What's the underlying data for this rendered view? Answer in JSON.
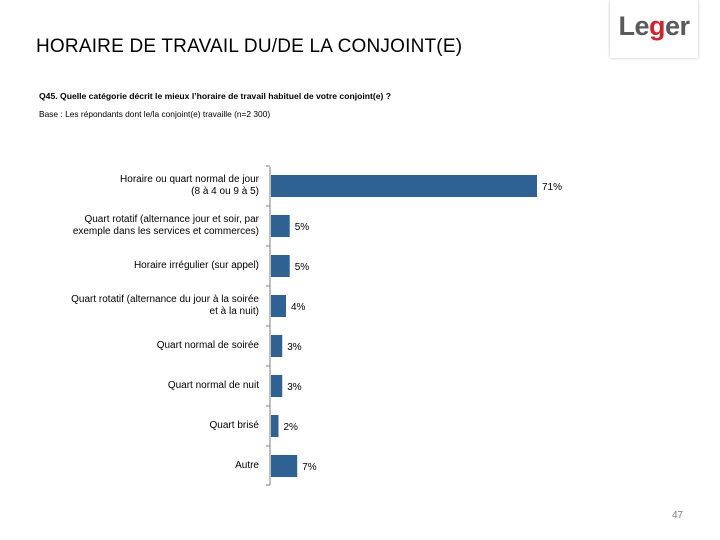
{
  "header": {
    "title": "HORAIRE DE TRAVAIL DU/DE LA CONJOINT(E)",
    "logo": {
      "pre": "Le",
      "accent": "g",
      "post": "er"
    }
  },
  "question": "Q45. Quelle catégorie décrit le mieux l’horaire de travail habituel de votre conjoint(e) ?",
  "base": "Base : Les répondants dont le/la conjoint(e) travaille (n=2 300)",
  "page_number": "47",
  "colors": {
    "bar": "#2e6294",
    "axis": "#7f7f7f"
  },
  "chart_data": {
    "type": "bar",
    "orientation": "horizontal",
    "title": "",
    "xlabel": "",
    "ylabel": "",
    "xlim": [
      0,
      71
    ],
    "grid": false,
    "categories": [
      [
        "Horaire ou quart normal de jour",
        "(8 à 4 ou 9 à 5)"
      ],
      [
        "Quart rotatif (alternance jour et soir, par",
        "exemple dans les services et commerces)"
      ],
      [
        "Horaire irrégulier (sur appel)"
      ],
      [
        "Quart rotatif (alternance du jour à la soirée",
        "et à la nuit)"
      ],
      [
        "Quart normal de soirée"
      ],
      [
        "Quart normal de nuit"
      ],
      [
        "Quart brisé"
      ],
      [
        "Autre"
      ]
    ],
    "values": [
      71,
      5,
      5,
      4,
      3,
      3,
      2,
      7
    ],
    "data_labels": [
      "71%",
      "5%",
      "5%",
      "4%",
      "3%",
      "3%",
      "2%",
      "7%"
    ]
  }
}
